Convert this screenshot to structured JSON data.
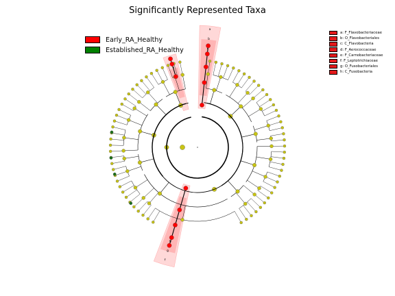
{
  "title": "Significantly Represented Taxa",
  "legend": [
    {
      "label": "Early_RA_Healthy",
      "color": "#ff0000"
    },
    {
      "label": "Established_RA_Healthy",
      "color": "#008000"
    }
  ],
  "key": [
    {
      "letter": "a",
      "text": "a: F_Flavobacteriaceae"
    },
    {
      "letter": "b",
      "text": "b: O_Flavobacteriales"
    },
    {
      "letter": "c",
      "text": "c: C_Flavobacteria"
    },
    {
      "letter": "d",
      "text": "d: F_Aerococcaceae"
    },
    {
      "letter": "e",
      "text": "e: F_Carnobacteriaceae"
    },
    {
      "letter": "f",
      "text": "f: F_Leptotrichiaceae"
    },
    {
      "letter": "g",
      "text": "g: O_Fusobacteriales"
    },
    {
      "letter": "h",
      "text": "h: C_Fusobacteria"
    }
  ],
  "colors": {
    "node_default": "#c8c414",
    "node_enriched": "#ff0000",
    "node_other": "#1a6e1a",
    "highlight": "#ff4d4d"
  }
}
